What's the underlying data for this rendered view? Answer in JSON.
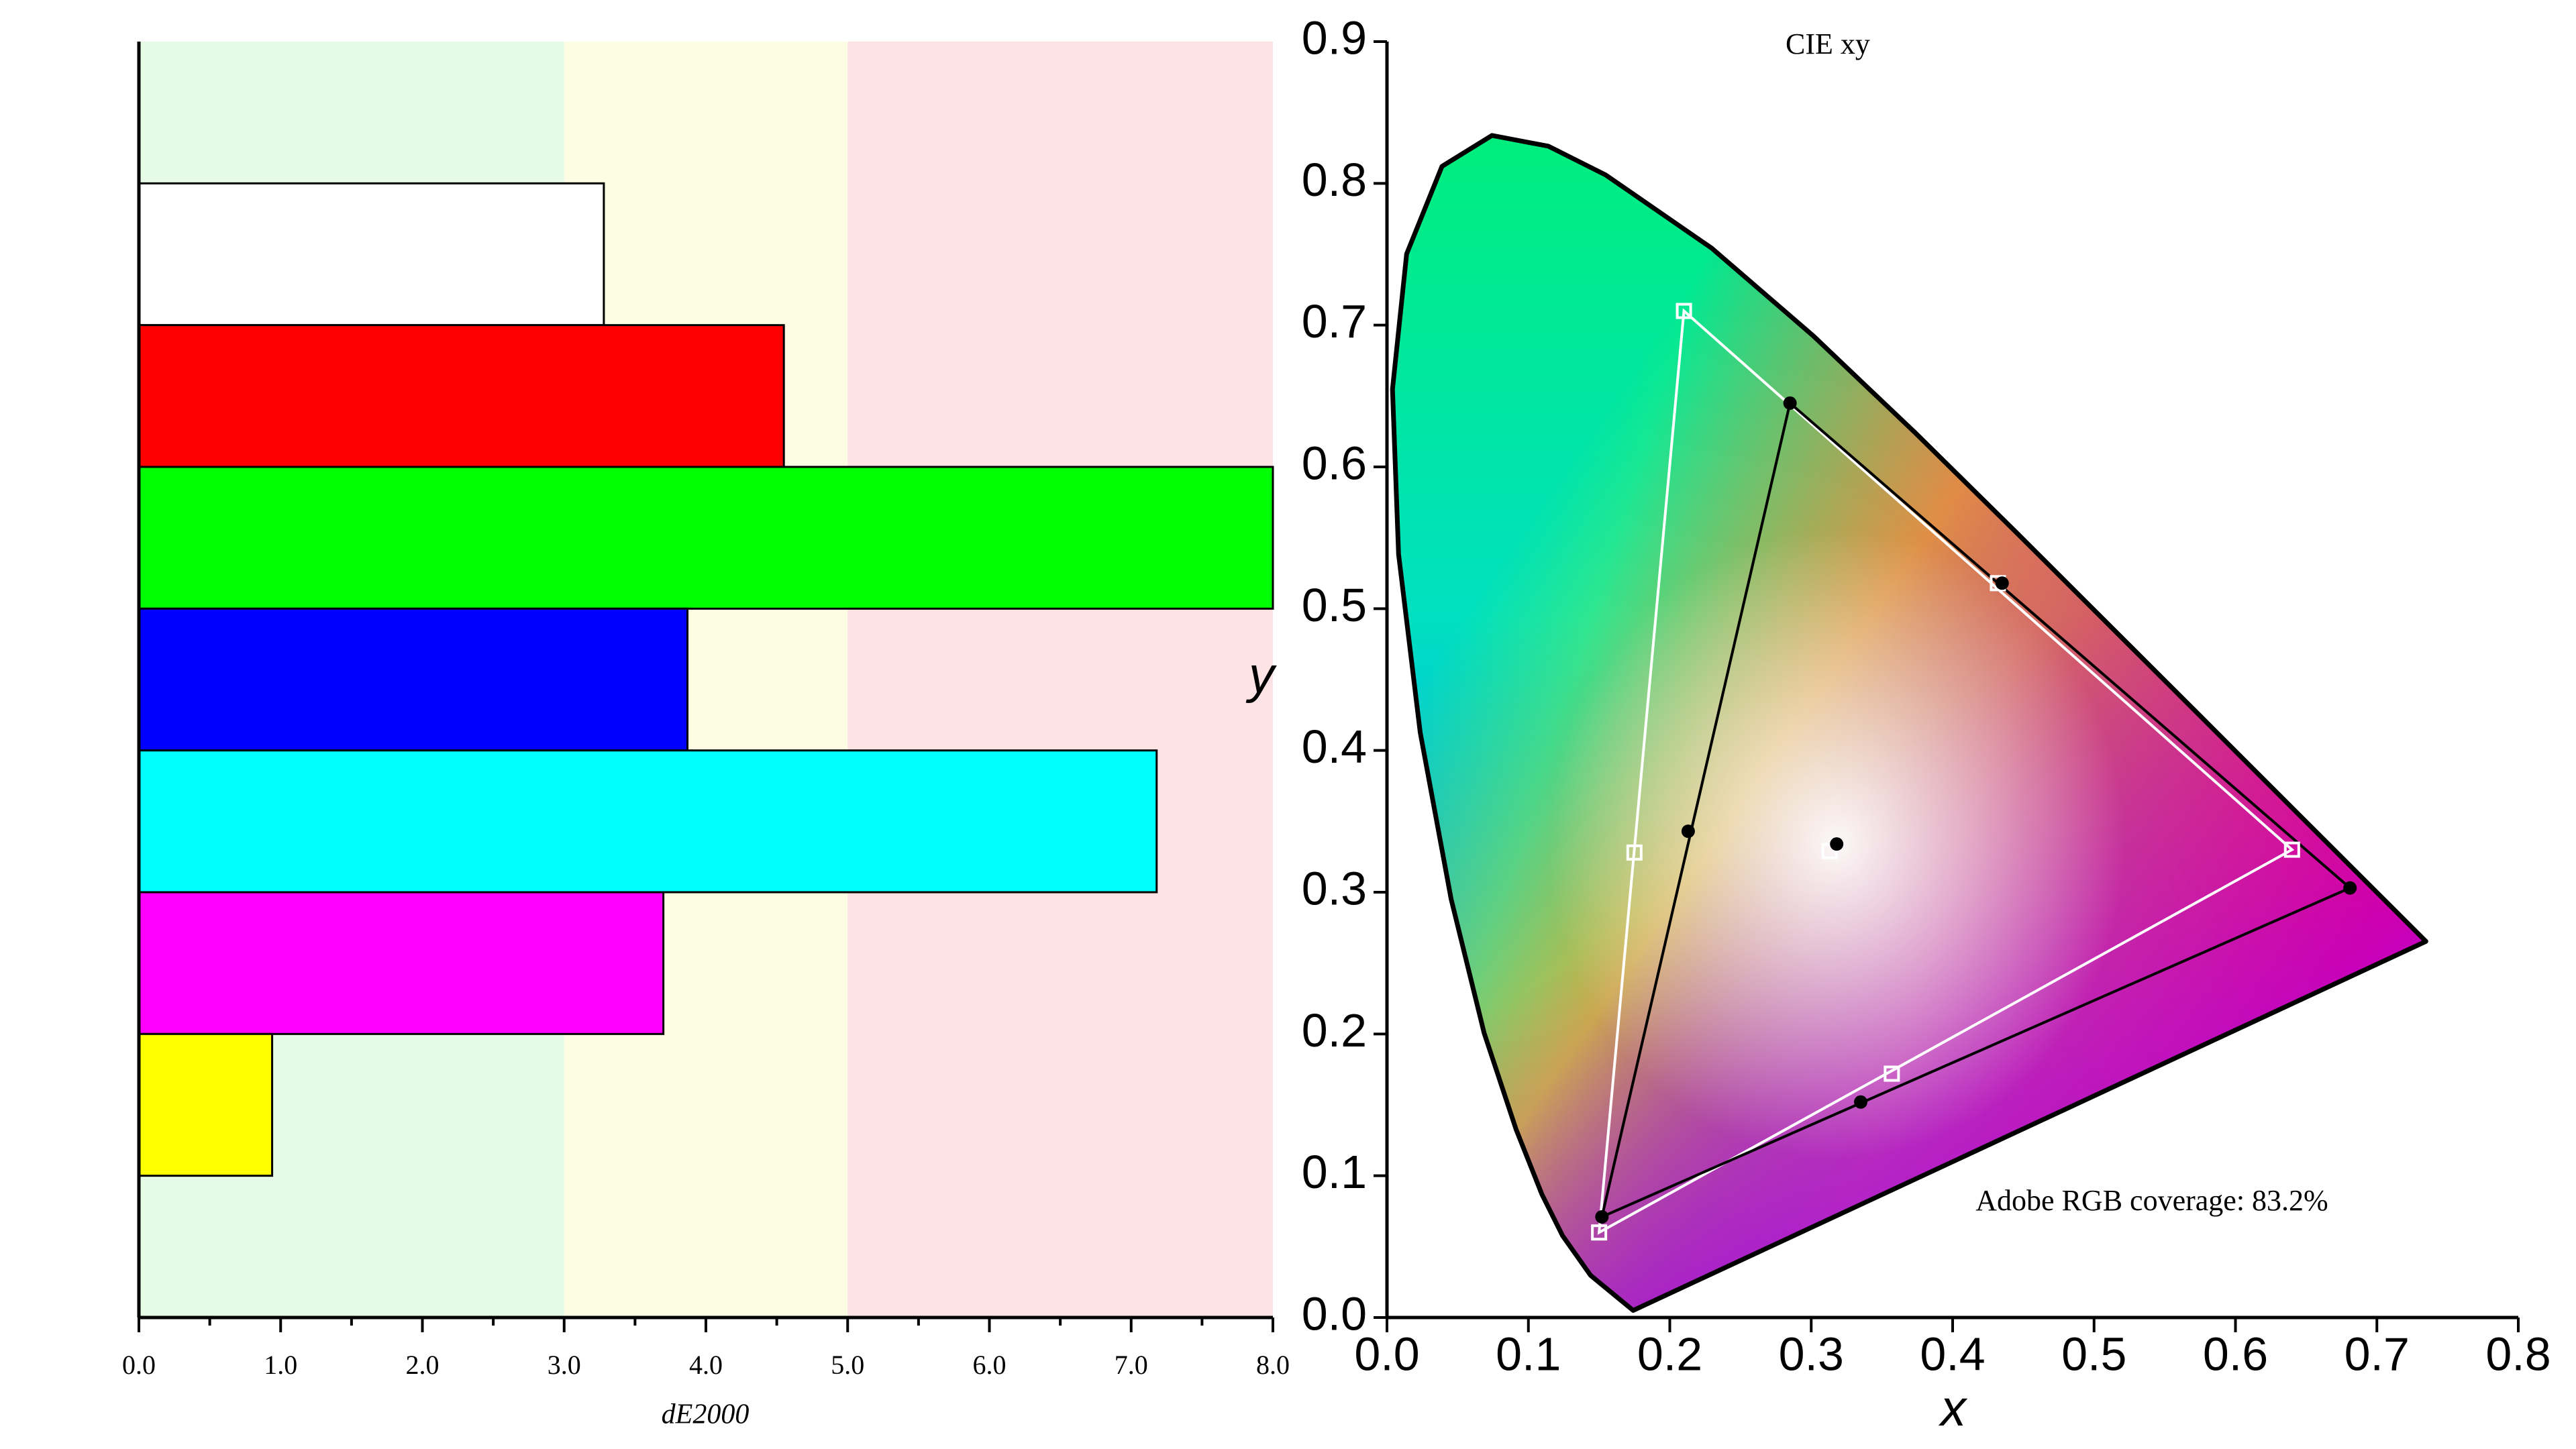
{
  "chart_data": [
    {
      "type": "bar",
      "orientation": "horizontal",
      "x_label": "dE2000",
      "categories": [
        null,
        null,
        null,
        null,
        null,
        null,
        null
      ],
      "values": [
        3.28,
        4.55,
        8.0,
        3.87,
        7.18,
        3.7,
        0.94
      ],
      "colors": [
        "#ffffff",
        "#ff0000",
        "#00ff00",
        "#0000ff",
        "#00ffff",
        "#ff00ff",
        "#ffff00"
      ],
      "xlim": [
        0,
        8
      ],
      "xticks": [
        {
          "value": 0,
          "label": "0.0"
        },
        {
          "value": 1,
          "label": "1.0"
        },
        {
          "value": 2,
          "label": "2.0"
        },
        {
          "value": 3,
          "label": "3.0"
        },
        {
          "value": 4,
          "label": "4.0"
        },
        {
          "value": 5,
          "label": "5.0"
        },
        {
          "value": 6,
          "label": "6.0"
        },
        {
          "value": 7,
          "label": "7.0"
        },
        {
          "value": 8,
          "label": "8.0"
        }
      ],
      "bands": [
        {
          "from": 0,
          "to": 3,
          "color": "#e5fbe5"
        },
        {
          "from": 3,
          "to": 5,
          "color": "#fdfde3"
        },
        {
          "from": 5,
          "to": 8,
          "color": "#fde3e3"
        }
      ]
    },
    {
      "type": "scatter",
      "title": "CIE xy",
      "x_label": "x",
      "y_label": "y",
      "annotation": "Adobe RGB coverage: 83.2%",
      "xlim": [
        0,
        0.8
      ],
      "ylim": [
        0,
        0.9
      ],
      "xticks": [
        {
          "value": 0,
          "label": "0.0"
        },
        0.1,
        0.2,
        0.3,
        0.4,
        0.5,
        0.6,
        0.7,
        0.8
      ],
      "yticks": [
        {
          "value": 0,
          "label": "0.0"
        },
        0.1,
        0.2,
        0.3,
        0.4,
        0.5,
        0.6,
        0.7,
        0.8,
        0.9
      ],
      "spectral_locus": {
        "x": [
          0.1741,
          0.144,
          0.1241,
          0.1096,
          0.0913,
          0.0687,
          0.0454,
          0.0235,
          0.0082,
          0.0039,
          0.0139,
          0.0389,
          0.0743,
          0.1142,
          0.1547,
          0.2296,
          0.3016,
          0.3731,
          0.4441,
          0.5125,
          0.5752,
          0.627,
          0.6915,
          0.7347
        ],
        "y": [
          0.005,
          0.0297,
          0.0578,
          0.0868,
          0.1327,
          0.2007,
          0.295,
          0.4127,
          0.5384,
          0.6548,
          0.7502,
          0.812,
          0.8338,
          0.8262,
          0.8059,
          0.7543,
          0.6923,
          0.6245,
          0.5547,
          0.4866,
          0.4242,
          0.3725,
          0.3083,
          0.2653
        ]
      },
      "series": [
        {
          "color": "#ffffff",
          "marker": "square",
          "x": [
            0.64,
            0.21,
            0.15,
            0.432,
            0.357,
            0.175,
            0.313
          ],
          "y": [
            0.33,
            0.71,
            0.06,
            0.518,
            0.172,
            0.328,
            0.329
          ]
        },
        {
          "color": "#000000",
          "marker": "circle",
          "x": [
            0.681,
            0.285,
            0.152,
            0.435,
            0.335,
            0.213,
            0.318
          ],
          "y": [
            0.303,
            0.645,
            0.071,
            0.518,
            0.152,
            0.343,
            0.334
          ]
        }
      ]
    }
  ]
}
